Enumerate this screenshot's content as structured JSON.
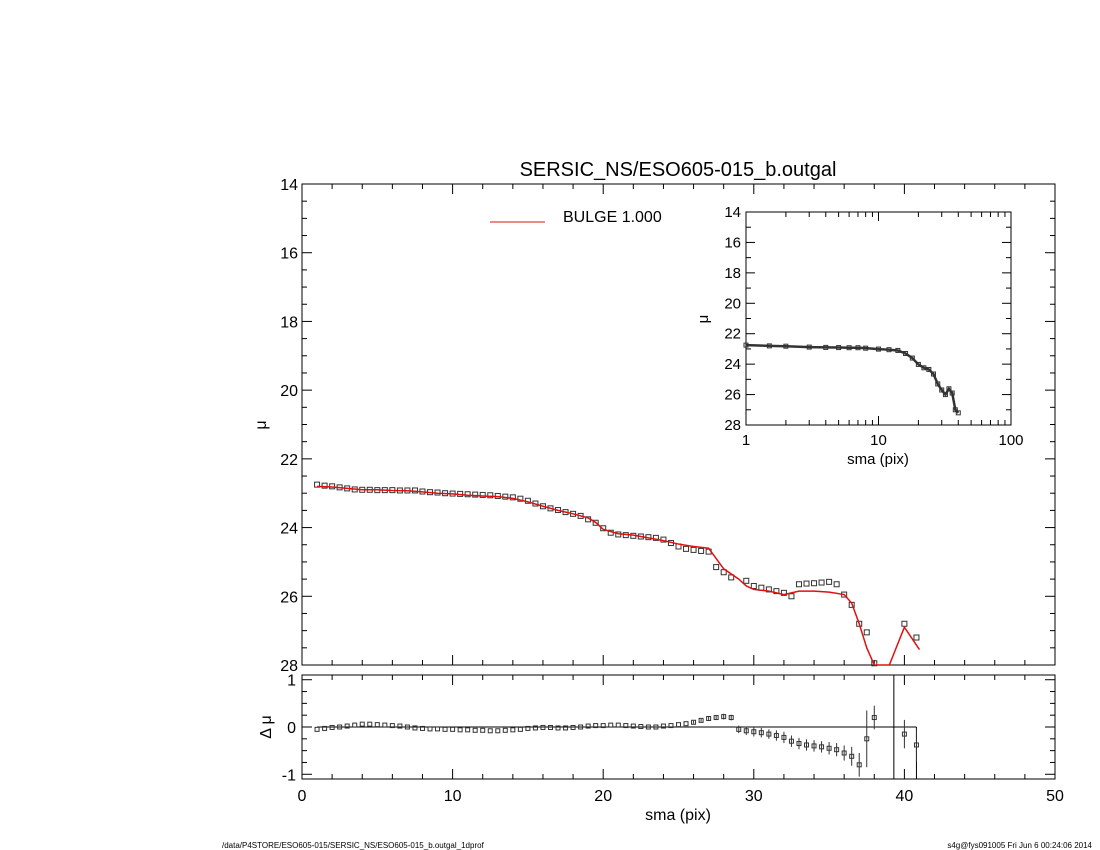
{
  "footer": {
    "left": "/data/P4STORE/ESO605-015/SERSIC_NS/ESO605-015_b.outgal_1dprof",
    "right": "s4g@fys091005  Fri Jun  6 00:24:06 2014"
  },
  "colors": {
    "model": "#e01010",
    "data": "#333333",
    "axis": "#000000"
  },
  "chart_data": [
    {
      "type": "scatter",
      "name": "main-profile",
      "title": "SERSIC_NS/ESO605-015_b.outgal",
      "xlabel": "",
      "ylabel": "μ",
      "xlim": [
        0,
        50
      ],
      "ylim": [
        28,
        14
      ],
      "yticks": [
        "14",
        "16",
        "18",
        "20",
        "22",
        "24",
        "26",
        "28"
      ],
      "legend": {
        "label": "BULGE  1.000",
        "placement": "top-center"
      },
      "series": [
        {
          "name": "data",
          "style": "square-markers",
          "x": [
            1.0,
            1.5,
            2.0,
            2.5,
            3.0,
            3.5,
            4.0,
            4.5,
            5.0,
            5.5,
            6.0,
            6.5,
            7.0,
            7.5,
            8.0,
            8.5,
            9.0,
            9.5,
            10.0,
            10.5,
            11.0,
            11.5,
            12.0,
            12.5,
            13.0,
            13.5,
            14.0,
            14.5,
            15.0,
            15.5,
            16.0,
            16.5,
            17.0,
            17.5,
            18.0,
            18.5,
            19.0,
            19.5,
            20.0,
            20.5,
            21.0,
            21.5,
            22.0,
            22.5,
            23.0,
            23.5,
            24.0,
            24.5,
            25.0,
            25.5,
            26.0,
            26.5,
            27.0,
            27.5,
            28.0,
            28.5,
            29.5,
            30.0,
            30.5,
            31.0,
            31.5,
            32.0,
            32.5,
            33.0,
            33.5,
            34.0,
            34.5,
            35.0,
            35.5,
            36.0,
            36.5,
            37.0,
            37.5,
            38.0,
            40.0,
            40.8
          ],
          "y": [
            22.75,
            22.78,
            22.8,
            22.83,
            22.86,
            22.89,
            22.9,
            22.9,
            22.91,
            22.91,
            22.91,
            22.92,
            22.92,
            22.92,
            22.95,
            22.97,
            22.98,
            23.0,
            23.01,
            23.02,
            23.03,
            23.04,
            23.05,
            23.06,
            23.08,
            23.1,
            23.12,
            23.16,
            23.22,
            23.3,
            23.38,
            23.44,
            23.49,
            23.55,
            23.6,
            23.66,
            23.76,
            23.86,
            24.02,
            24.15,
            24.2,
            24.22,
            24.24,
            24.26,
            24.28,
            24.3,
            24.35,
            24.45,
            24.55,
            24.62,
            24.65,
            24.68,
            24.7,
            25.15,
            25.3,
            25.45,
            25.55,
            25.7,
            25.75,
            25.8,
            25.85,
            25.9,
            26.0,
            25.65,
            25.63,
            25.62,
            25.6,
            25.58,
            25.65,
            25.95,
            26.25,
            26.8,
            27.05,
            28.0,
            26.8,
            27.2
          ]
        },
        {
          "name": "BULGE  1.000",
          "style": "line",
          "x": [
            1.0,
            2.0,
            3.0,
            4.0,
            5.0,
            6.0,
            7.0,
            8.0,
            9.0,
            10.0,
            11.0,
            12.0,
            13.0,
            14.0,
            15.0,
            16.0,
            17.0,
            18.0,
            19.0,
            19.5,
            20.0,
            21.0,
            22.0,
            23.0,
            24.0,
            25.0,
            26.0,
            27.0,
            28.0,
            29.0,
            29.5,
            30.0,
            31.0,
            32.0,
            32.5,
            33.0,
            34.0,
            35.0,
            36.0,
            36.5,
            37.0,
            37.5,
            38.0,
            39.0,
            40.0,
            41.0
          ],
          "y": [
            22.8,
            22.82,
            22.86,
            22.9,
            22.9,
            22.92,
            22.93,
            22.96,
            23.0,
            23.02,
            23.06,
            23.08,
            23.1,
            23.15,
            23.25,
            23.38,
            23.5,
            23.6,
            23.72,
            23.85,
            24.05,
            24.18,
            24.22,
            24.3,
            24.38,
            24.48,
            24.55,
            24.6,
            25.2,
            25.5,
            25.7,
            25.8,
            25.85,
            25.95,
            25.9,
            25.85,
            25.85,
            25.88,
            25.95,
            26.2,
            26.8,
            27.5,
            28.0,
            28.0,
            26.9,
            27.55
          ]
        }
      ]
    },
    {
      "type": "scatter",
      "name": "inset-log-profile",
      "title": "",
      "xlabel": "sma (pix)",
      "ylabel": "μ",
      "xscale": "log",
      "xlim": [
        1,
        100
      ],
      "ylim": [
        28,
        14
      ],
      "xticks": [
        "1",
        "10",
        "100"
      ],
      "yticks": [
        "14",
        "16",
        "18",
        "20",
        "22",
        "24",
        "26",
        "28"
      ],
      "series": [
        {
          "name": "data",
          "style": "square-markers",
          "x": [
            1.0,
            1.5,
            2.0,
            3.0,
            4.0,
            5.0,
            6.0,
            7.0,
            8.0,
            10.0,
            12.0,
            14.0,
            16.0,
            18.0,
            20.0,
            22.0,
            24.0,
            26.0,
            28.0,
            30.0,
            32.0,
            34.0,
            36.0,
            38.0,
            40.0
          ],
          "y": [
            22.75,
            22.8,
            22.82,
            22.88,
            22.9,
            22.91,
            22.92,
            22.92,
            22.95,
            23.01,
            23.05,
            23.1,
            23.3,
            23.6,
            24.02,
            24.24,
            24.35,
            24.65,
            25.3,
            25.7,
            26.0,
            25.62,
            25.9,
            27.0,
            27.2
          ]
        }
      ]
    },
    {
      "type": "scatter",
      "name": "residuals",
      "title": "",
      "xlabel": "sma (pix)",
      "ylabel": "Δ μ",
      "xlim": [
        0,
        50
      ],
      "ylim": [
        -1.1,
        1.1
      ],
      "xticks": [
        "0",
        "10",
        "20",
        "30",
        "40",
        "50"
      ],
      "yticks": [
        "1",
        "0",
        "-1"
      ],
      "series": [
        {
          "name": "residual",
          "style": "square-markers-with-errorbars",
          "x": [
            1.0,
            1.5,
            2.0,
            2.5,
            3.0,
            3.5,
            4.0,
            4.5,
            5.0,
            5.5,
            6.0,
            6.5,
            7.0,
            7.5,
            8.0,
            8.5,
            9.0,
            9.5,
            10.0,
            10.5,
            11.0,
            11.5,
            12.0,
            12.5,
            13.0,
            13.5,
            14.0,
            14.5,
            15.0,
            15.5,
            16.0,
            16.5,
            17.0,
            17.5,
            18.0,
            18.5,
            19.0,
            19.5,
            20.0,
            20.5,
            21.0,
            21.5,
            22.0,
            22.5,
            23.0,
            23.5,
            24.0,
            24.5,
            25.0,
            25.5,
            26.0,
            26.5,
            27.0,
            27.5,
            28.0,
            28.5,
            29.0,
            29.5,
            30.0,
            30.5,
            31.0,
            31.5,
            32.0,
            32.5,
            33.0,
            33.5,
            34.0,
            34.5,
            35.0,
            35.5,
            36.0,
            36.5,
            37.0,
            37.5,
            38.0,
            40.0,
            40.8
          ],
          "y": [
            -0.05,
            -0.03,
            -0.01,
            0.0,
            0.02,
            0.04,
            0.06,
            0.06,
            0.05,
            0.04,
            0.03,
            0.02,
            0.0,
            -0.02,
            -0.03,
            -0.04,
            -0.04,
            -0.05,
            -0.05,
            -0.06,
            -0.06,
            -0.07,
            -0.07,
            -0.08,
            -0.08,
            -0.07,
            -0.06,
            -0.05,
            -0.03,
            -0.02,
            -0.01,
            -0.01,
            -0.02,
            -0.02,
            -0.01,
            0.0,
            0.02,
            0.03,
            0.03,
            0.04,
            0.04,
            0.03,
            0.02,
            0.01,
            0.0,
            0.0,
            0.02,
            0.03,
            0.05,
            0.07,
            0.1,
            0.14,
            0.18,
            0.2,
            0.22,
            0.2,
            -0.05,
            -0.08,
            -0.1,
            -0.12,
            -0.15,
            -0.18,
            -0.22,
            -0.3,
            -0.35,
            -0.38,
            -0.4,
            -0.42,
            -0.45,
            -0.48,
            -0.55,
            -0.62,
            -0.8,
            -0.25,
            0.2,
            -0.15,
            -0.38
          ],
          "err": [
            0.01,
            0.01,
            0.01,
            0.01,
            0.01,
            0.01,
            0.01,
            0.01,
            0.01,
            0.01,
            0.01,
            0.01,
            0.01,
            0.01,
            0.01,
            0.01,
            0.01,
            0.01,
            0.01,
            0.01,
            0.01,
            0.01,
            0.01,
            0.01,
            0.01,
            0.01,
            0.01,
            0.01,
            0.01,
            0.01,
            0.01,
            0.01,
            0.01,
            0.01,
            0.01,
            0.01,
            0.01,
            0.01,
            0.01,
            0.01,
            0.01,
            0.01,
            0.01,
            0.01,
            0.01,
            0.01,
            0.01,
            0.01,
            0.02,
            0.02,
            0.03,
            0.03,
            0.04,
            0.05,
            0.06,
            0.06,
            0.08,
            0.09,
            0.1,
            0.1,
            0.1,
            0.11,
            0.12,
            0.12,
            0.12,
            0.12,
            0.12,
            0.12,
            0.13,
            0.14,
            0.16,
            0.2,
            0.25,
            0.6,
            0.25,
            0.3,
            0.35
          ]
        }
      ]
    }
  ]
}
